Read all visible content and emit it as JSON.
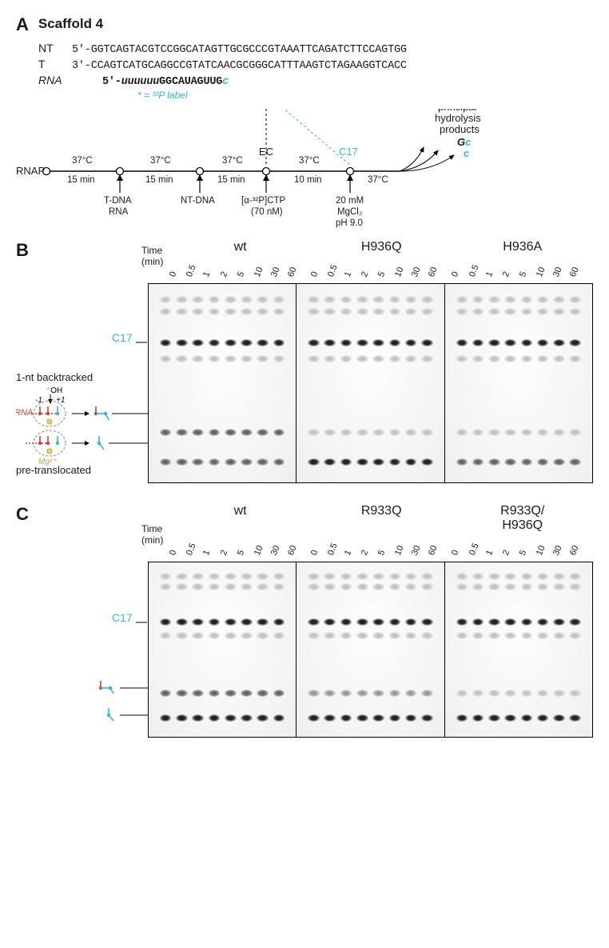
{
  "panel_letters": {
    "a": "A",
    "b": "B",
    "c": "C"
  },
  "scaffold": {
    "title": "Scaffold 4",
    "nt_label": "NT",
    "t_label": "T",
    "rna_label": "RNA",
    "nt_seq": "5'-GGTCAGTACGTCCGGCATAGTTGCGCCCGTAAATTCAGATCTTCCAGTGG",
    "t_seq": "3'-CCAGTCATGCAGGCCGTATCAACGCGGGCATTTAAGTCTAGAAGGTCACC",
    "rna_prefix": "5'-",
    "rna_u": "uuuuuu",
    "rna_core": "GGCAUAGUUG",
    "rna_tail": "c",
    "note": "* = ³²P label",
    "note_color": "#35b3de"
  },
  "timeline": {
    "leftmost": "RNAP",
    "steps": [
      {
        "above": "37°C",
        "below": "15 min",
        "input": [
          "T-DNA",
          "RNA"
        ]
      },
      {
        "above": "37°C",
        "below": "15 min",
        "input": [
          "NT-DNA"
        ]
      },
      {
        "above": "37°C",
        "below": "10 min",
        "input": [
          "[α-³²P]CTP",
          "(70 nM)"
        ],
        "node_label": "EC"
      },
      {
        "above": "37°C",
        "below": "",
        "input": [
          "20 mM",
          "MgCl₂",
          "pH 9.0"
        ],
        "node_label": ""
      }
    ],
    "ec_label": "EC",
    "c17_label": "C17",
    "right_heading": "principal\nhydrolysis\nproducts",
    "right_products_top": "G",
    "right_products_tail": "c",
    "right_products_single": "c"
  },
  "gel_common": {
    "time_label": "Time\n(min)",
    "times": [
      "0",
      "0.5",
      "1",
      "2",
      "5",
      "10",
      "30",
      "60"
    ],
    "c17_label": "C17"
  },
  "panelB": {
    "variants": [
      "wt",
      "H936Q",
      "H936A"
    ],
    "left_text": {
      "title": "1-nt backtracked",
      "pos_minus1": "-1",
      "pos_plus1": "+1",
      "oh": "⁻OH",
      "rna": "RNA",
      "mg": "Mg²⁺",
      "pre": "pre-translocated"
    },
    "band_positions": {
      "c17_pct": 28,
      "di_pct": 73,
      "mono_pct": 88
    },
    "colors": {
      "rna": "#d4403c",
      "c": "#35b3de",
      "mg": "#c2a13b"
    }
  },
  "panelC": {
    "variants": [
      "wt",
      "R933Q",
      "R933Q/\nH936Q"
    ],
    "band_positions": {
      "c17_pct": 32,
      "di_pct": 73,
      "mono_pct": 87
    }
  },
  "style": {
    "cyan": "#35b3de",
    "red": "#d4403c",
    "gold": "#c2a13b",
    "bg": "#ffffff",
    "panel_letter_fontsize": 22,
    "seq_font": "Courier New",
    "seq_fontsize": 13.5,
    "gel_border": "#000000",
    "gel_height_B": 250,
    "gel_height_C": 220
  }
}
